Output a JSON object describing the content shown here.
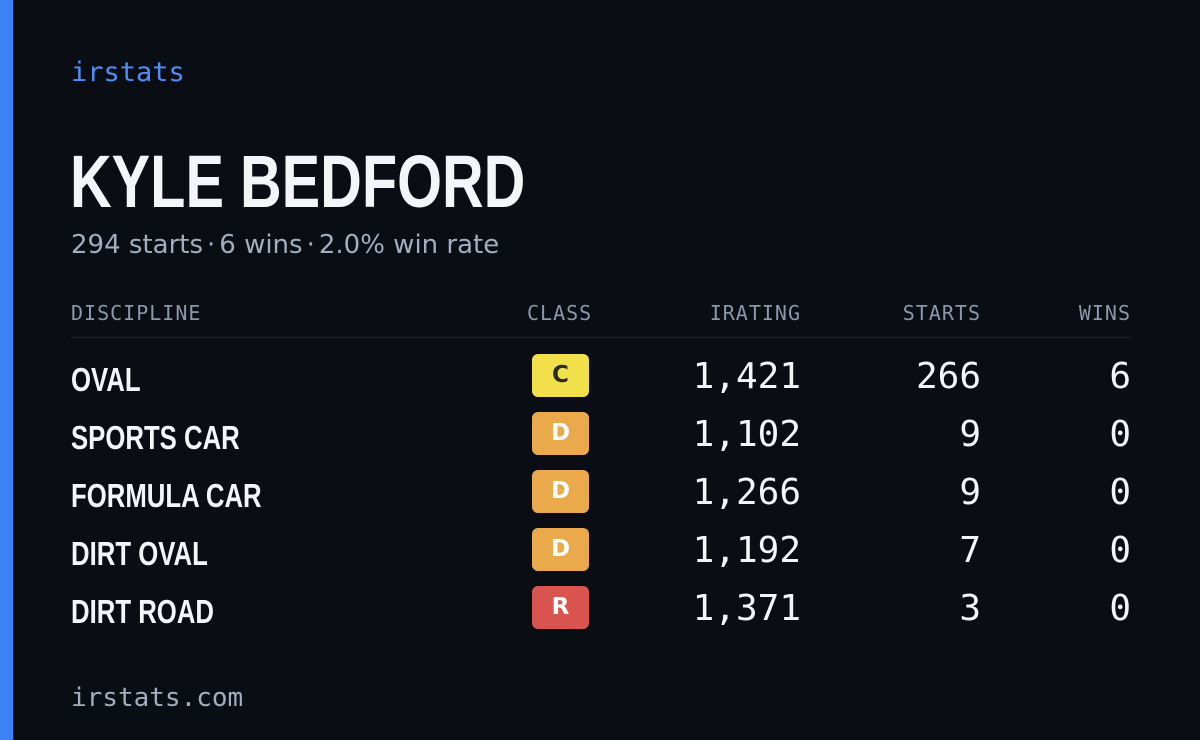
{
  "brand": "irstats",
  "driver": {
    "name": "KYLE BEDFORD",
    "starts": "294 starts",
    "wins": "6 wins",
    "win_rate": "2.0% win rate",
    "separator": "·"
  },
  "table": {
    "headers": {
      "discipline": "DISCIPLINE",
      "class": "CLASS",
      "irating": "IRATING",
      "starts": "STARTS",
      "wins": "WINS"
    },
    "rows": [
      {
        "discipline": "OVAL",
        "class": "C",
        "class_color": "#f1e04a",
        "class_text_color": "#2a2a1a",
        "irating": "1,421",
        "starts": "266",
        "wins": "6"
      },
      {
        "discipline": "SPORTS CAR",
        "class": "D",
        "class_color": "#eaa94b",
        "class_text_color": "#ffffff",
        "irating": "1,102",
        "starts": "9",
        "wins": "0"
      },
      {
        "discipline": "FORMULA CAR",
        "class": "D",
        "class_color": "#eaa94b",
        "class_text_color": "#ffffff",
        "irating": "1,266",
        "starts": "9",
        "wins": "0"
      },
      {
        "discipline": "DIRT OVAL",
        "class": "D",
        "class_color": "#eaa94b",
        "class_text_color": "#ffffff",
        "irating": "1,192",
        "starts": "7",
        "wins": "0"
      },
      {
        "discipline": "DIRT ROAD",
        "class": "R",
        "class_color": "#d9534f",
        "class_text_color": "#ffffff",
        "irating": "1,371",
        "starts": "3",
        "wins": "0"
      }
    ]
  },
  "footer": "irstats.com",
  "colors": {
    "background": "#0a0d14",
    "accent": "#3b82f6"
  }
}
